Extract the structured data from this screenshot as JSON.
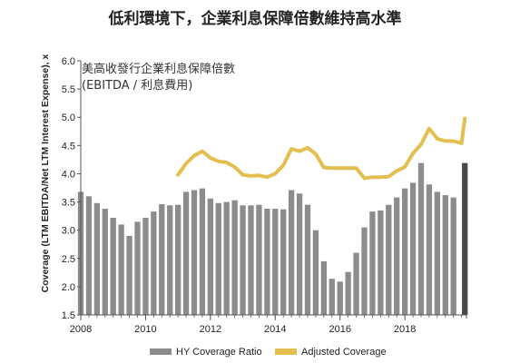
{
  "title": "低利環境下，企業利息保障倍數維持高水準",
  "chart_data": {
    "type": "bar+line",
    "subtitle_line1": "美高收發行企業利息保障倍數",
    "subtitle_line2": "(EBITDA / 利息費用)",
    "ylabel": "Coverage (LTM EBITDA/Net LTM Interest Expense), x",
    "ylim": [
      1.5,
      6.0
    ],
    "yticks": [
      "1.5",
      "2.0",
      "2.5",
      "3.0",
      "3.5",
      "4.0",
      "4.5",
      "5.0",
      "5.5",
      "6.0"
    ],
    "xlim": [
      2008.0,
      2019.9
    ],
    "xticks": [
      "2008",
      "2010",
      "2012",
      "2014",
      "2016",
      "2018"
    ],
    "colors": {
      "bar": "#8c8c8c",
      "bar_last": "#4a4a4a",
      "line": "#e3bf4f",
      "axis": "#555555"
    },
    "legend": {
      "bar_label": "HY Coverage Ratio",
      "line_label": "Adjusted Coverage"
    },
    "bars": {
      "name": "HY Coverage Ratio",
      "x": [
        2008.0,
        2008.25,
        2008.5,
        2008.75,
        2009.0,
        2009.25,
        2009.5,
        2009.75,
        2010.0,
        2010.25,
        2010.5,
        2010.75,
        2011.0,
        2011.25,
        2011.5,
        2011.75,
        2012.0,
        2012.25,
        2012.5,
        2012.75,
        2013.0,
        2013.25,
        2013.5,
        2013.75,
        2014.0,
        2014.25,
        2014.5,
        2014.75,
        2015.0,
        2015.25,
        2015.5,
        2015.75,
        2016.0,
        2016.25,
        2016.5,
        2016.75,
        2017.0,
        2017.25,
        2017.5,
        2017.75,
        2018.0,
        2018.25,
        2018.5,
        2018.75,
        2019.0,
        2019.25,
        2019.5,
        2019.85
      ],
      "values": [
        3.68,
        3.6,
        3.48,
        3.38,
        3.22,
        3.1,
        2.9,
        3.15,
        3.22,
        3.33,
        3.46,
        3.44,
        3.45,
        3.68,
        3.71,
        3.74,
        3.56,
        3.48,
        3.5,
        3.53,
        3.44,
        3.44,
        3.45,
        3.38,
        3.38,
        3.37,
        3.71,
        3.65,
        3.45,
        3.0,
        2.45,
        2.14,
        2.09,
        2.26,
        2.6,
        3.05,
        3.33,
        3.35,
        3.45,
        3.58,
        3.74,
        3.84,
        4.19,
        3.81,
        3.68,
        3.62,
        3.58,
        4.19
      ]
    },
    "line": {
      "name": "Adjusted Coverage",
      "x": [
        2011.0,
        2011.25,
        2011.5,
        2011.75,
        2012.0,
        2012.25,
        2012.5,
        2012.75,
        2013.0,
        2013.25,
        2013.5,
        2013.75,
        2014.0,
        2014.25,
        2014.5,
        2014.75,
        2015.0,
        2015.25,
        2015.5,
        2015.75,
        2016.0,
        2016.25,
        2016.5,
        2016.75,
        2017.0,
        2017.25,
        2017.5,
        2017.75,
        2018.0,
        2018.25,
        2018.5,
        2018.75,
        2019.0,
        2019.25,
        2019.5,
        2019.75
      ],
      "values": [
        3.98,
        4.18,
        4.32,
        4.4,
        4.28,
        4.22,
        4.2,
        4.12,
        3.98,
        3.96,
        3.97,
        3.94,
        4.0,
        4.15,
        4.44,
        4.4,
        4.46,
        4.35,
        4.11,
        4.1,
        4.1,
        4.1,
        4.1,
        3.92,
        3.94,
        3.94,
        3.95,
        4.05,
        4.12,
        4.36,
        4.52,
        4.8,
        4.62,
        4.58,
        4.58,
        4.54
      ]
    },
    "line_end": {
      "x": 2019.85,
      "value": 4.98
    }
  }
}
